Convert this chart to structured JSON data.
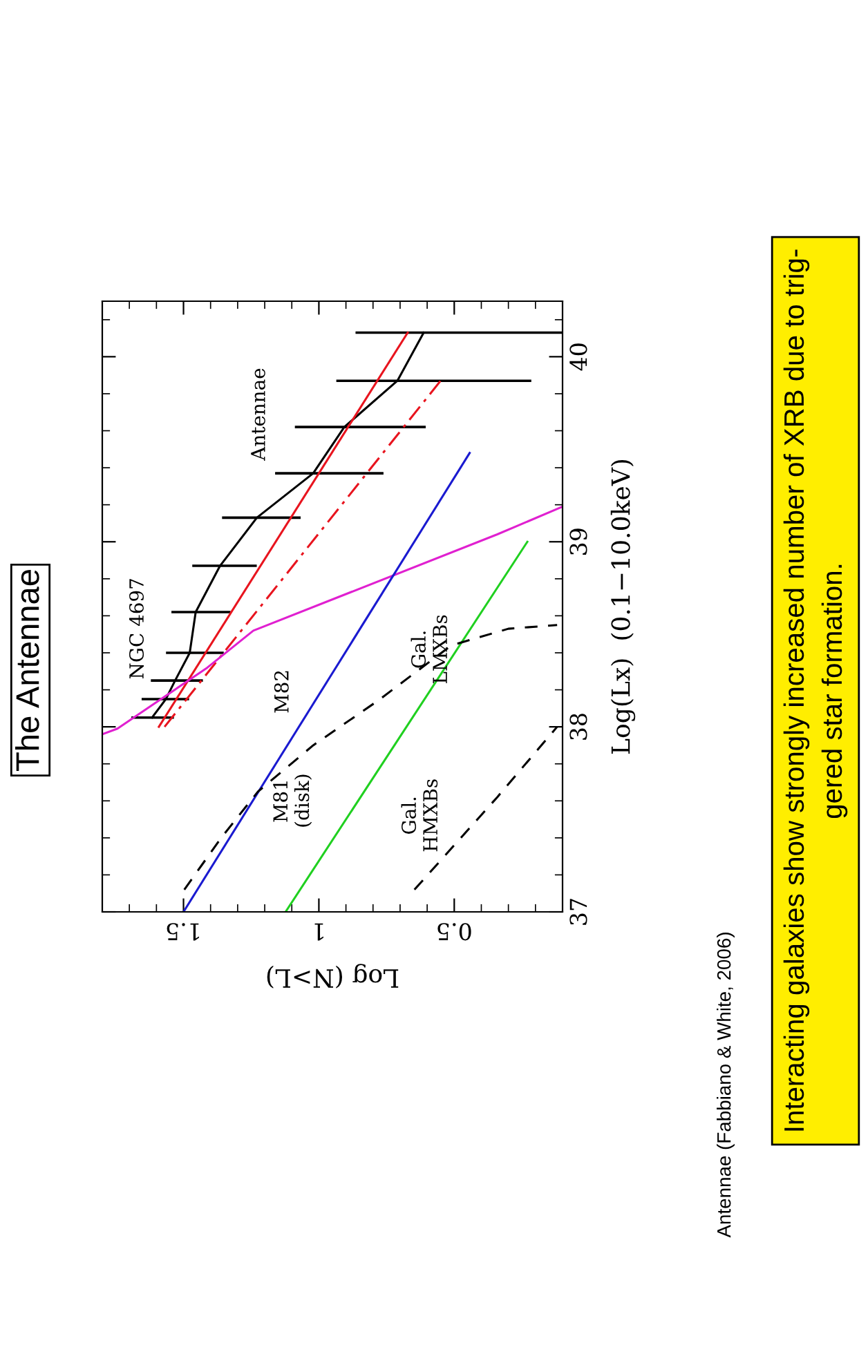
{
  "chart_data": {
    "type": "line",
    "title": "The Antennae",
    "xlabel": "Log (N>L)",
    "ylabel": "Log(Lx)  (0.1−10.0keV)",
    "xlim": [
      1.8,
      0.1
    ],
    "ylim": [
      37,
      40.3
    ],
    "xticks": [
      1.5,
      1,
      0.5
    ],
    "yticks": [
      37,
      38,
      39,
      40
    ],
    "grid": false,
    "legend": false,
    "marker": "none",
    "series": [
      {
        "color": "#000000",
        "line_style": "solid",
        "x": [
          1.616,
          1.565,
          1.531,
          1.477,
          1.455,
          1.365,
          1.229,
          1.021,
          0.906,
          0.71,
          0.613
        ],
        "values": [
          38.05,
          38.15,
          38.25,
          38.4,
          38.62,
          38.87,
          39.13,
          39.37,
          39.62,
          39.87,
          40.13
        ],
        "xerrors": [
          [
            1.54,
            1.688
          ],
          [
            1.484,
            1.65
          ],
          [
            1.433,
            1.616
          ],
          [
            1.356,
            1.56
          ],
          [
            1.331,
            1.54
          ],
          [
            1.234,
            1.463
          ],
          [
            1.072,
            1.353
          ],
          [
            0.766,
            1.157
          ],
          [
            0.61,
            1.084
          ],
          [
            0.22,
            0.931
          ],
          [
            0.1,
            0.86
          ]
        ]
      },
      {
        "color": "#e8141e",
        "line_style": "solid",
        "x": [
          1.591,
          0.672
        ],
        "values": [
          38.0,
          40.13
        ]
      },
      {
        "color": "#e8141e",
        "line_style": "dashdot",
        "x": [
          1.57,
          0.545
        ],
        "values": [
          38.0,
          39.88
        ]
      },
      {
        "color": "#e020d0",
        "line_style": "solid",
        "x": [
          1.8,
          1.744,
          1.412,
          1.242,
          0.341,
          0.1
        ],
        "values": [
          37.96,
          37.99,
          38.32,
          38.52,
          39.04,
          39.19
        ]
      },
      {
        "color": "#1a1ad0",
        "line_style": "solid",
        "x": [
          1.5,
          0.443
        ],
        "values": [
          37.0,
          39.48
        ]
      },
      {
        "color": "#20d020",
        "line_style": "solid",
        "x": [
          1.123,
          0.23
        ],
        "values": [
          37.0,
          39.0
        ]
      },
      {
        "color": "#000000",
        "line_style": "dashed",
        "x": [
          1.497,
          1.361,
          1.225,
          1.021,
          0.783,
          0.511,
          0.3,
          0.12
        ],
        "values": [
          37.12,
          37.4,
          37.65,
          37.9,
          38.14,
          38.44,
          38.53,
          38.55
        ]
      },
      {
        "color": "#000000",
        "line_style": "dashed",
        "x": [
          0.647,
          0.341,
          0.12
        ],
        "values": [
          37.12,
          37.62,
          38.0
        ]
      }
    ],
    "annotations": [
      "NGC 4697",
      "M82",
      "Antennae",
      "M81\n(disk)",
      "Gal.\nLMXBs",
      "Gal.\nHMXBs",
      "Antennae (Fabbiano & White, 2006)",
      "Interacting galaxies show strongly increased number of XRB due to trig-\ngered star formation."
    ]
  }
}
